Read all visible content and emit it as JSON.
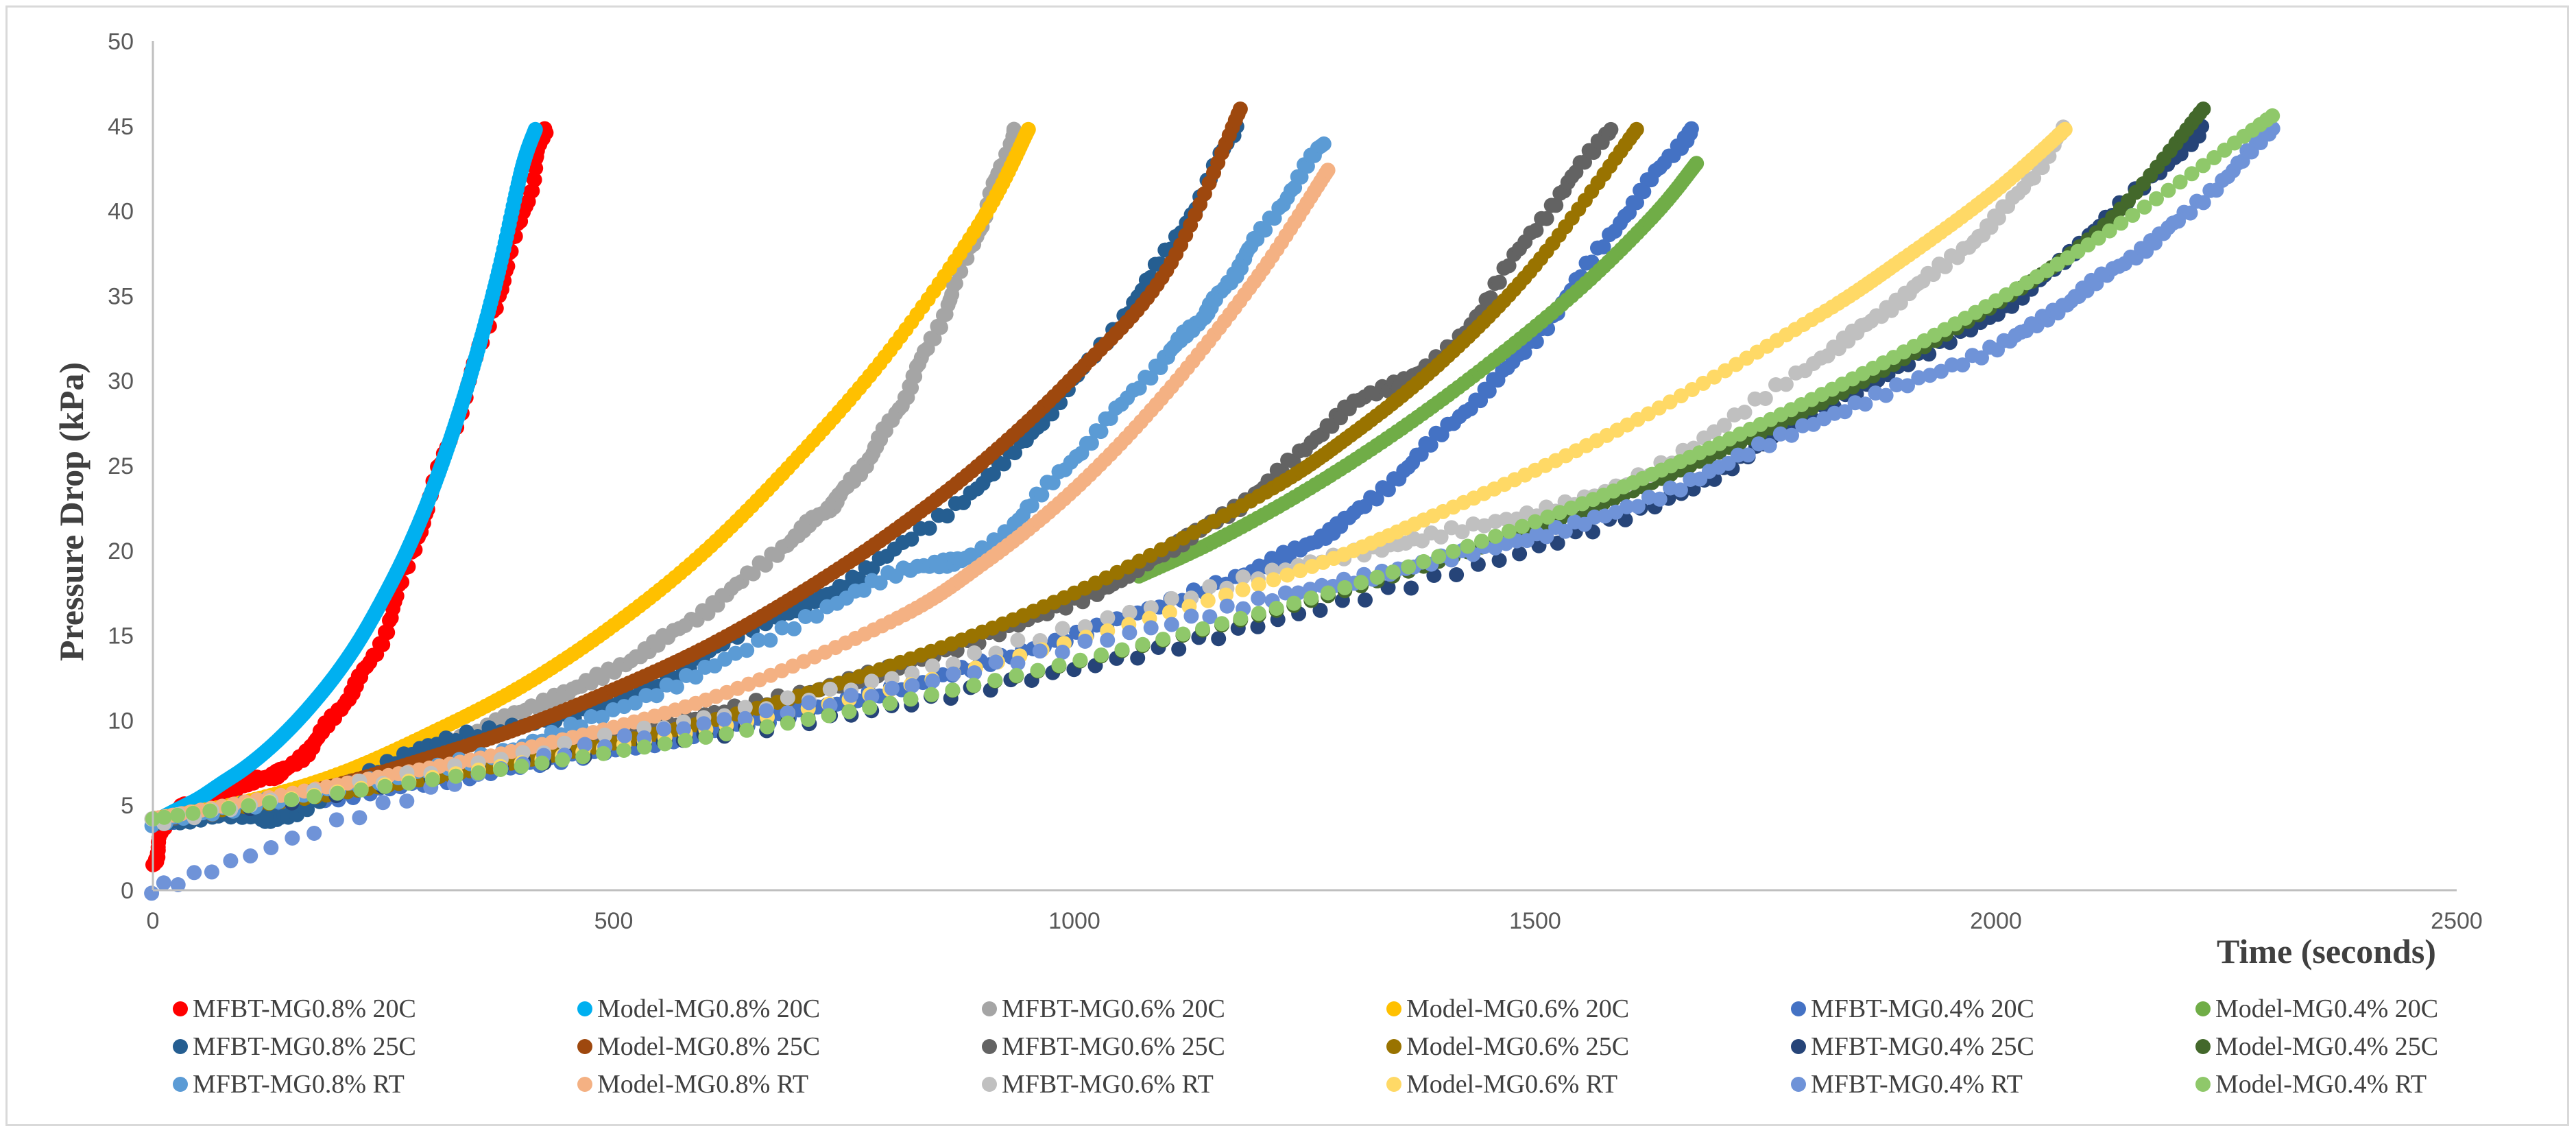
{
  "chart_data": {
    "type": "scatter",
    "title": "",
    "xlabel": "Time (seconds)",
    "ylabel": "Pressure Drop (kPa)",
    "xlim": [
      0,
      2500
    ],
    "ylim": [
      0,
      50
    ],
    "xticks": [
      0,
      500,
      1000,
      1500,
      2000,
      2500
    ],
    "yticks": [
      0,
      5,
      10,
      15,
      20,
      25,
      30,
      35,
      40,
      45,
      50
    ],
    "grid": false,
    "legend_position": "bottom",
    "series": [
      {
        "name": "MFBT-MG0.8% 20C",
        "color": "#ff0000",
        "kind": "data",
        "x": [
          0,
          20,
          60,
          100,
          150,
          200,
          250,
          300,
          350,
          400,
          425
        ],
        "y": [
          1.5,
          4.4,
          5.2,
          6.3,
          7.3,
          10.5,
          15.0,
          23.0,
          31.0,
          39.5,
          44.8
        ]
      },
      {
        "name": "Model-MG0.8% 20C",
        "color": "#00b0f0",
        "kind": "model",
        "x": [
          0,
          25,
          50,
          75,
          100,
          125,
          150,
          175,
          200,
          225,
          250,
          275,
          300,
          325,
          350,
          375,
          400,
          415
        ],
        "y": [
          4.0,
          4.7,
          5.4,
          6.3,
          7.2,
          8.3,
          9.6,
          11.1,
          12.8,
          14.8,
          17.2,
          19.9,
          23.1,
          26.9,
          31.3,
          36.4,
          42.4,
          44.8
        ]
      },
      {
        "name": "MFBT-MG0.6% 20C",
        "color": "#a5a5a5",
        "kind": "data",
        "x": [
          0,
          100,
          200,
          300,
          400,
          500,
          600,
          700,
          750,
          800,
          850,
          900,
          935
        ],
        "y": [
          4.0,
          5.0,
          6.2,
          8.2,
          10.5,
          13.0,
          16.5,
          21.0,
          23.5,
          27.5,
          33.0,
          39.5,
          44.8
        ]
      },
      {
        "name": "Model-MG0.6% 20C",
        "color": "#ffc000",
        "kind": "model",
        "x": [
          0,
          100,
          200,
          300,
          400,
          500,
          600,
          700,
          800,
          900,
          950
        ],
        "y": [
          4.2,
          5.2,
          6.8,
          9.2,
          12.0,
          15.6,
          20.0,
          25.5,
          31.8,
          39.5,
          44.8
        ]
      },
      {
        "name": "MFBT-MG0.4% 20C",
        "color": "#4472c4",
        "kind": "data",
        "x": [
          0,
          100,
          200,
          400,
          600,
          800,
          1000,
          1200,
          1300,
          1400,
          1500,
          1600,
          1670
        ],
        "y": [
          4.0,
          4.8,
          5.5,
          7.3,
          9.3,
          11.8,
          15.0,
          19.0,
          22.0,
          27.0,
          32.5,
          40.0,
          44.8
        ]
      },
      {
        "name": "Model-MG0.4% 20C",
        "color": "#70ad47",
        "kind": "model",
        "x": [
          1070,
          1150,
          1250,
          1350,
          1450,
          1550,
          1630,
          1675
        ],
        "y": [
          18.5,
          20.5,
          23.5,
          27.0,
          31.0,
          35.5,
          39.8,
          42.8
        ]
      },
      {
        "name": "MFBT-MG0.8% 25C",
        "color": "#255e91",
        "kind": "data",
        "x": [
          0,
          100,
          150,
          300,
          500,
          650,
          750,
          900,
          1000,
          1100,
          1175
        ],
        "y": [
          4.0,
          4.5,
          4.5,
          8.5,
          11.0,
          15.5,
          18.0,
          24.0,
          30.0,
          37.5,
          44.8
        ]
      },
      {
        "name": "Model-MG0.8% 25C",
        "color": "#9e480e",
        "kind": "model",
        "x": [
          0,
          100,
          200,
          300,
          400,
          500,
          600,
          700,
          800,
          900,
          1000,
          1100,
          1180
        ],
        "y": [
          4.2,
          5.0,
          6.2,
          7.8,
          9.6,
          11.8,
          14.3,
          17.4,
          21.0,
          25.2,
          30.3,
          36.5,
          46.0
        ]
      },
      {
        "name": "MFBT-MG0.6% 25C",
        "color": "#636363",
        "kind": "data",
        "x": [
          0,
          200,
          400,
          600,
          800,
          1000,
          1100,
          1200,
          1300,
          1400,
          1500,
          1580
        ],
        "y": [
          4.0,
          6.0,
          8.0,
          10.3,
          13.0,
          17.0,
          20.0,
          23.5,
          28.5,
          31.5,
          39.0,
          44.8
        ]
      },
      {
        "name": "Model-MG0.6% 25C",
        "color": "#997300",
        "kind": "model",
        "x": [
          0,
          200,
          400,
          600,
          800,
          1000,
          1200,
          1300,
          1400,
          1500,
          1610
        ],
        "y": [
          4.2,
          5.7,
          7.6,
          9.9,
          13.2,
          17.5,
          23.2,
          26.8,
          31.2,
          36.8,
          44.8
        ]
      },
      {
        "name": "MFBT-MG0.4% 25C",
        "color": "#264478",
        "kind": "data",
        "x": [
          0,
          400,
          800,
          1200,
          1600,
          1800,
          2000,
          2100,
          2225
        ],
        "y": [
          4.0,
          7.5,
          10.8,
          15.6,
          22.0,
          28.0,
          34.0,
          38.5,
          44.8
        ]
      },
      {
        "name": "Model-MG0.4% 25C",
        "color": "#43682b",
        "kind": "model",
        "x": [
          0,
          400,
          800,
          1200,
          1500,
          1700,
          1900,
          2100,
          2225
        ],
        "y": [
          4.2,
          7.5,
          11.0,
          16.2,
          21.3,
          25.8,
          31.3,
          38.3,
          46.0
        ]
      },
      {
        "name": "MFBT-MG0.8% RT",
        "color": "#5b9bd5",
        "kind": "data",
        "x": [
          0,
          200,
          400,
          600,
          800,
          900,
          1000,
          1100,
          1150,
          1200,
          1270
        ],
        "y": [
          4.0,
          6.0,
          8.5,
          13.0,
          18.5,
          20.0,
          25.5,
          31.5,
          34.5,
          38.5,
          44.0
        ]
      },
      {
        "name": "Model-MG0.8% RT",
        "color": "#f4b183",
        "kind": "model",
        "x": [
          0,
          200,
          400,
          600,
          800,
          900,
          1000,
          1100,
          1200,
          1275
        ],
        "y": [
          4.2,
          6.2,
          8.3,
          11.2,
          15.8,
          19.2,
          23.6,
          29.3,
          36.2,
          42.4
        ]
      },
      {
        "name": "MFBT-MG0.6% RT",
        "color": "#c0c0c0",
        "kind": "data",
        "x": [
          0,
          400,
          800,
          1200,
          1400,
          1600,
          1800,
          1900,
          2000,
          2075
        ],
        "y": [
          4.0,
          8.0,
          12.5,
          18.5,
          21.0,
          24.0,
          31.0,
          35.0,
          39.5,
          44.8
        ]
      },
      {
        "name": "Model-MG0.6% RT",
        "color": "#ffd966",
        "kind": "model",
        "x": [
          0,
          400,
          800,
          1200,
          1400,
          1600,
          1800,
          1900,
          2000,
          2075
        ],
        "y": [
          4.2,
          7.5,
          11.8,
          18.0,
          22.3,
          27.4,
          33.6,
          37.2,
          41.2,
          44.8
        ]
      },
      {
        "name": "MFBT-MG0.4% RT",
        "color": "#6f93d8",
        "kind": "data",
        "x": [
          0,
          400,
          800,
          1200,
          1400,
          1600,
          1800,
          2000,
          2100,
          2200,
          2300
        ],
        "y": [
          0,
          7.5,
          11.8,
          17.0,
          19.5,
          22.5,
          27.5,
          32.0,
          35.5,
          39.5,
          44.8
        ]
      },
      {
        "name": "Model-MG0.4% RT",
        "color": "#8fc86a",
        "kind": "model",
        "x": [
          0,
          400,
          800,
          1200,
          1500,
          1700,
          1900,
          2100,
          2300
        ],
        "y": [
          4.2,
          7.3,
          11.0,
          16.3,
          21.7,
          26.3,
          31.7,
          38.0,
          45.6
        ]
      }
    ]
  }
}
